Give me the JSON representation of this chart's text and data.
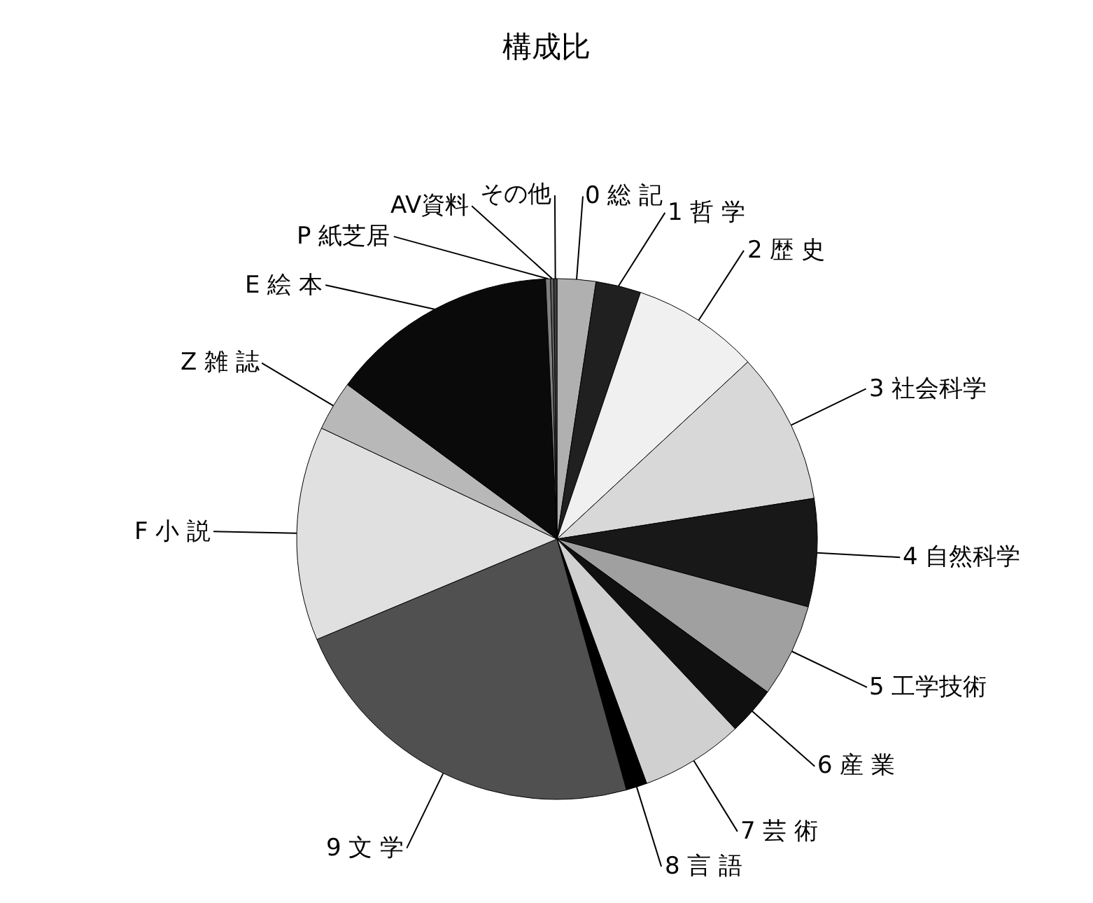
{
  "chart_data": {
    "type": "pie",
    "title": "構成比",
    "categories": [
      "0 総 記",
      "1 哲 学",
      "2 歴 史",
      "3 社会科学",
      "4 自然科学",
      "5 工学技術",
      "6 産 業",
      "7 芸 術",
      "8 言 語",
      "9 文 学",
      "F 小 説",
      "Z 雑 誌",
      "E 絵 本",
      "P 紙芝居",
      "AV資料",
      "その他"
    ],
    "values": [
      2.4,
      2.8,
      7.9,
      9.4,
      6.7,
      5.8,
      3.0,
      6.4,
      1.3,
      23.0,
      13.3,
      3.1,
      14.2,
      0.3,
      0.2,
      0.2
    ],
    "colors": [
      "#b0b0b0",
      "#202020",
      "#f0f0f0",
      "#d8d8d8",
      "#181818",
      "#a0a0a0",
      "#101010",
      "#d0d0d0",
      "#000000",
      "#505050",
      "#e0e0e0",
      "#b8b8b8",
      "#0a0a0a",
      "#808080",
      "#606060",
      "#404040"
    ],
    "legend": false
  }
}
